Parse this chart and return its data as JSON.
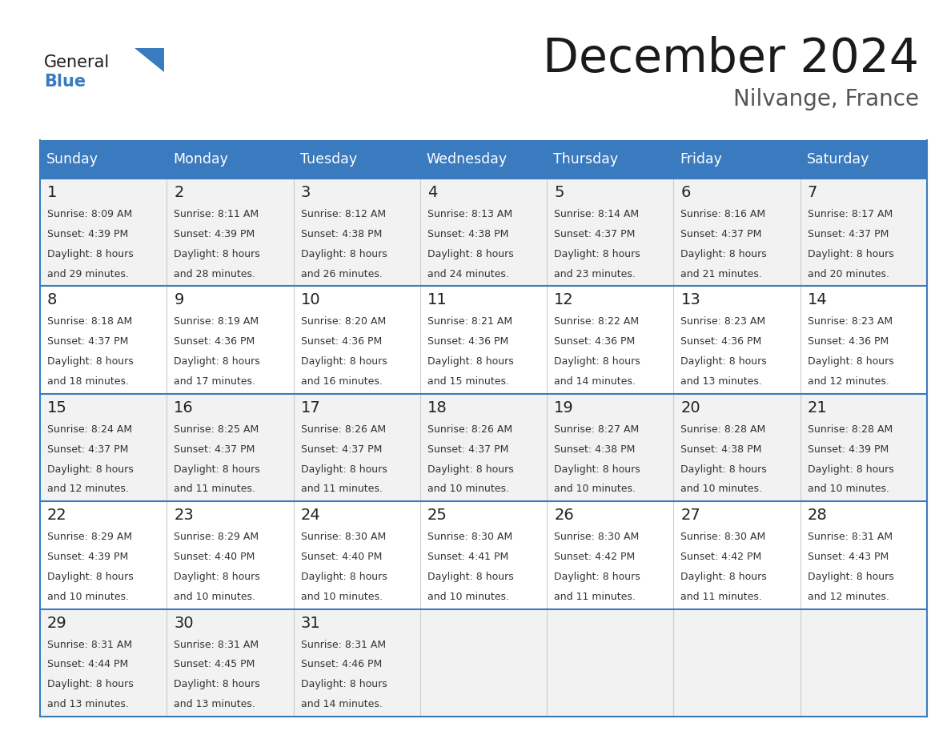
{
  "title": "December 2024",
  "subtitle": "Nilvange, France",
  "header_bg_color": "#3a7abf",
  "header_text_color": "#ffffff",
  "row_bg_odd": "#f2f2f2",
  "row_bg_even": "#ffffff",
  "text_color": "#333333",
  "days_of_week": [
    "Sunday",
    "Monday",
    "Tuesday",
    "Wednesday",
    "Thursday",
    "Friday",
    "Saturday"
  ],
  "weeks": [
    [
      {
        "day": 1,
        "sunrise": "8:09 AM",
        "sunset": "4:39 PM",
        "daylight_hours": 8,
        "daylight_min": "29 minutes."
      },
      {
        "day": 2,
        "sunrise": "8:11 AM",
        "sunset": "4:39 PM",
        "daylight_hours": 8,
        "daylight_min": "28 minutes."
      },
      {
        "day": 3,
        "sunrise": "8:12 AM",
        "sunset": "4:38 PM",
        "daylight_hours": 8,
        "daylight_min": "26 minutes."
      },
      {
        "day": 4,
        "sunrise": "8:13 AM",
        "sunset": "4:38 PM",
        "daylight_hours": 8,
        "daylight_min": "24 minutes."
      },
      {
        "day": 5,
        "sunrise": "8:14 AM",
        "sunset": "4:37 PM",
        "daylight_hours": 8,
        "daylight_min": "23 minutes."
      },
      {
        "day": 6,
        "sunrise": "8:16 AM",
        "sunset": "4:37 PM",
        "daylight_hours": 8,
        "daylight_min": "21 minutes."
      },
      {
        "day": 7,
        "sunrise": "8:17 AM",
        "sunset": "4:37 PM",
        "daylight_hours": 8,
        "daylight_min": "20 minutes."
      }
    ],
    [
      {
        "day": 8,
        "sunrise": "8:18 AM",
        "sunset": "4:37 PM",
        "daylight_hours": 8,
        "daylight_min": "18 minutes."
      },
      {
        "day": 9,
        "sunrise": "8:19 AM",
        "sunset": "4:36 PM",
        "daylight_hours": 8,
        "daylight_min": "17 minutes."
      },
      {
        "day": 10,
        "sunrise": "8:20 AM",
        "sunset": "4:36 PM",
        "daylight_hours": 8,
        "daylight_min": "16 minutes."
      },
      {
        "day": 11,
        "sunrise": "8:21 AM",
        "sunset": "4:36 PM",
        "daylight_hours": 8,
        "daylight_min": "15 minutes."
      },
      {
        "day": 12,
        "sunrise": "8:22 AM",
        "sunset": "4:36 PM",
        "daylight_hours": 8,
        "daylight_min": "14 minutes."
      },
      {
        "day": 13,
        "sunrise": "8:23 AM",
        "sunset": "4:36 PM",
        "daylight_hours": 8,
        "daylight_min": "13 minutes."
      },
      {
        "day": 14,
        "sunrise": "8:23 AM",
        "sunset": "4:36 PM",
        "daylight_hours": 8,
        "daylight_min": "12 minutes."
      }
    ],
    [
      {
        "day": 15,
        "sunrise": "8:24 AM",
        "sunset": "4:37 PM",
        "daylight_hours": 8,
        "daylight_min": "12 minutes."
      },
      {
        "day": 16,
        "sunrise": "8:25 AM",
        "sunset": "4:37 PM",
        "daylight_hours": 8,
        "daylight_min": "11 minutes."
      },
      {
        "day": 17,
        "sunrise": "8:26 AM",
        "sunset": "4:37 PM",
        "daylight_hours": 8,
        "daylight_min": "11 minutes."
      },
      {
        "day": 18,
        "sunrise": "8:26 AM",
        "sunset": "4:37 PM",
        "daylight_hours": 8,
        "daylight_min": "10 minutes."
      },
      {
        "day": 19,
        "sunrise": "8:27 AM",
        "sunset": "4:38 PM",
        "daylight_hours": 8,
        "daylight_min": "10 minutes."
      },
      {
        "day": 20,
        "sunrise": "8:28 AM",
        "sunset": "4:38 PM",
        "daylight_hours": 8,
        "daylight_min": "10 minutes."
      },
      {
        "day": 21,
        "sunrise": "8:28 AM",
        "sunset": "4:39 PM",
        "daylight_hours": 8,
        "daylight_min": "10 minutes."
      }
    ],
    [
      {
        "day": 22,
        "sunrise": "8:29 AM",
        "sunset": "4:39 PM",
        "daylight_hours": 8,
        "daylight_min": "10 minutes."
      },
      {
        "day": 23,
        "sunrise": "8:29 AM",
        "sunset": "4:40 PM",
        "daylight_hours": 8,
        "daylight_min": "10 minutes."
      },
      {
        "day": 24,
        "sunrise": "8:30 AM",
        "sunset": "4:40 PM",
        "daylight_hours": 8,
        "daylight_min": "10 minutes."
      },
      {
        "day": 25,
        "sunrise": "8:30 AM",
        "sunset": "4:41 PM",
        "daylight_hours": 8,
        "daylight_min": "10 minutes."
      },
      {
        "day": 26,
        "sunrise": "8:30 AM",
        "sunset": "4:42 PM",
        "daylight_hours": 8,
        "daylight_min": "11 minutes."
      },
      {
        "day": 27,
        "sunrise": "8:30 AM",
        "sunset": "4:42 PM",
        "daylight_hours": 8,
        "daylight_min": "11 minutes."
      },
      {
        "day": 28,
        "sunrise": "8:31 AM",
        "sunset": "4:43 PM",
        "daylight_hours": 8,
        "daylight_min": "12 minutes."
      }
    ],
    [
      {
        "day": 29,
        "sunrise": "8:31 AM",
        "sunset": "4:44 PM",
        "daylight_hours": 8,
        "daylight_min": "13 minutes."
      },
      {
        "day": 30,
        "sunrise": "8:31 AM",
        "sunset": "4:45 PM",
        "daylight_hours": 8,
        "daylight_min": "13 minutes."
      },
      {
        "day": 31,
        "sunrise": "8:31 AM",
        "sunset": "4:46 PM",
        "daylight_hours": 8,
        "daylight_min": "14 minutes."
      },
      null,
      null,
      null,
      null
    ]
  ]
}
